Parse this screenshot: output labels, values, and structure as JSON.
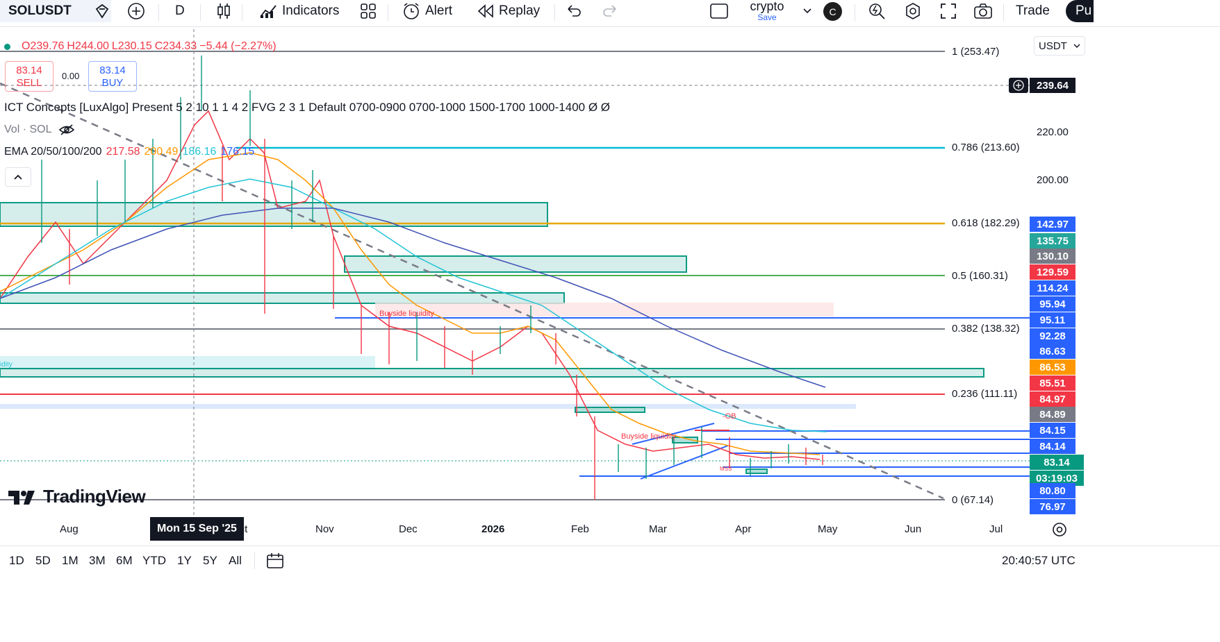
{
  "toolbar": {
    "symbol": "SOLUSDT",
    "interval": "D",
    "indicators_label": "Indicators",
    "alert_label": "Alert",
    "replay_label": "Replay",
    "layout_name": "crypto",
    "layout_save": "Save",
    "avatar_letter": "C",
    "trade_label": "Trade",
    "publish_label": "Pu"
  },
  "legend": {
    "dot_color": "#089981",
    "open": "O239.76",
    "high": "H244.00",
    "low": "L230.15",
    "close": "C234.33",
    "change": "−5.44 (−2.27%)",
    "sell_price": "83.14",
    "sell_label": "SELL",
    "spread": "0.00",
    "buy_price": "83.14",
    "buy_label": "BUY",
    "ict": "ICT Concepts [LuxAlgo] Present 5 2 10 1 1 4 2 FVG 2 3 1 Default 0700-0900 0700-1000 1500-1700 1000-1400 Ø Ø",
    "vol": "Vol · SOL",
    "ema_label": "EMA 20/50/100/200",
    "ema_values": [
      "217.58",
      "200.49",
      "186.16",
      "176.15"
    ],
    "ema_colors": [
      "#f23645",
      "#ff9800",
      "#22c4d6",
      "#2962ff"
    ]
  },
  "fib_levels": [
    {
      "label": "1 (253.47)",
      "color": "#787b86"
    },
    {
      "label": "0.786 (213.60)",
      "color": "#00bcd4"
    },
    {
      "label": "0.618 (182.29)",
      "color": "#e6a700"
    },
    {
      "label": "0.5 (160.31)",
      "color": "#4caf50"
    },
    {
      "label": "0.382 (138.32)",
      "color": "#787b86"
    },
    {
      "label": "0.236 (111.11)",
      "color": "#f23645"
    },
    {
      "label": "0 (67.14)",
      "color": "#787b86"
    }
  ],
  "chart_labels": {
    "buyside_1": "Buyside liquidity",
    "buyside_2": "Buyside liquidity",
    "ob": "-OB",
    "mss": "MSS",
    "liquidity_left": "idity"
  },
  "price_scale": {
    "currency": "USDT",
    "crosshair_price": "239.64",
    "ticks": [
      "220.00",
      "200.00"
    ],
    "tags": [
      {
        "value": "142.97",
        "color": "#2962ff"
      },
      {
        "value": "135.75",
        "color": "#26a69a"
      },
      {
        "value": "130.10",
        "color": "#787b86"
      },
      {
        "value": "129.59",
        "color": "#f23645"
      },
      {
        "value": "114.24",
        "color": "#2962ff"
      },
      {
        "value": "95.94",
        "color": "#2962ff"
      },
      {
        "value": "95.11",
        "color": "#2962ff"
      },
      {
        "value": "92.28",
        "color": "#2962ff"
      },
      {
        "value": "86.63",
        "color": "#2962ff"
      },
      {
        "value": "86.53",
        "color": "#ff9800"
      },
      {
        "value": "85.51",
        "color": "#f23645"
      },
      {
        "value": "84.97",
        "color": "#f23645"
      },
      {
        "value": "84.89",
        "color": "#787b86"
      },
      {
        "value": "84.15",
        "color": "#2962ff"
      },
      {
        "value": "84.14",
        "color": "#2962ff"
      },
      {
        "value": "83.14",
        "color": "#089981"
      },
      {
        "value": "03:19:03",
        "color": "#089981"
      },
      {
        "value": "80.80",
        "color": "#2962ff"
      },
      {
        "value": "76.97",
        "color": "#2962ff"
      }
    ]
  },
  "time_axis": {
    "labels": [
      "Aug",
      "Oct",
      "Nov",
      "Dec",
      "2026",
      "Feb",
      "Mar",
      "Apr",
      "May",
      "Jun",
      "Jul"
    ],
    "crosshair_date": "Mon 15 Sep '25"
  },
  "bottom": {
    "ranges": [
      "1D",
      "5D",
      "1M",
      "3M",
      "6M",
      "YTD",
      "1Y",
      "5Y",
      "All"
    ],
    "clock": "20:40:57 UTC"
  },
  "branding": "TradingView"
}
